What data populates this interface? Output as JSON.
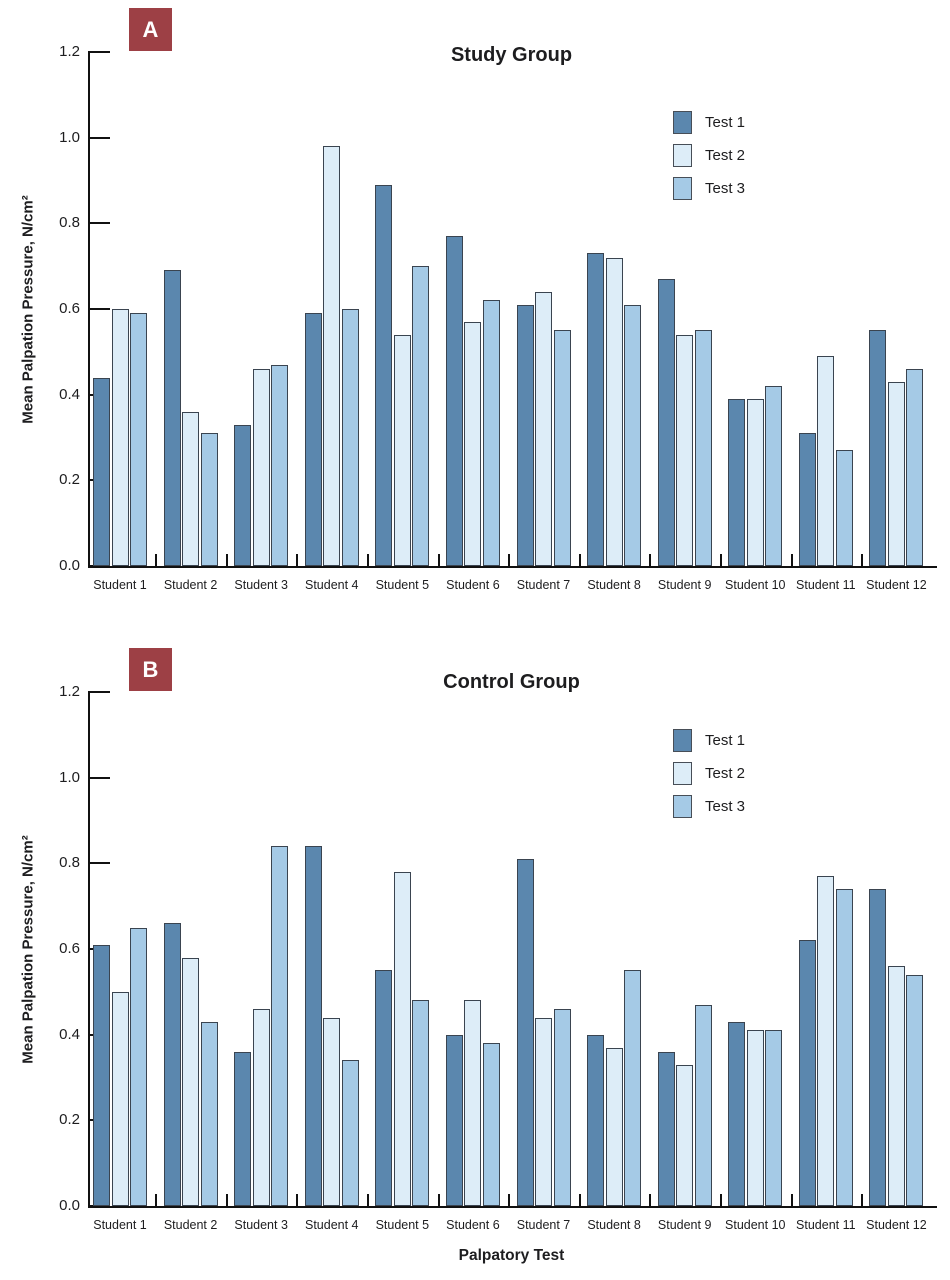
{
  "figure": {
    "panels": [
      {
        "badge": "A"
      },
      {
        "badge": "B"
      }
    ]
  },
  "colors": {
    "badge_bg": "#9d4045",
    "bar_border": "#3a4450",
    "series_colors": [
      "#5b87ae",
      "#ddedf8",
      "#a5cae6"
    ],
    "axis_color": "#111111"
  },
  "chart_data": [
    {
      "type": "bar",
      "panel": "A",
      "title": "Study Group",
      "xlabel": "",
      "ylabel": "Mean Palpation Pressure, N/cm²",
      "ylim": [
        0.0,
        1.2
      ],
      "yticks": [
        0.0,
        0.2,
        0.4,
        0.6,
        0.8,
        1.0,
        1.2
      ],
      "grid": false,
      "legend_position": "upper right",
      "categories": [
        "Student 1",
        "Student 2",
        "Student 3",
        "Student 4",
        "Student 5",
        "Student 6",
        "Student 7",
        "Student 8",
        "Student 9",
        "Student 10",
        "Student 11",
        "Student 12"
      ],
      "series": [
        {
          "name": "Test 1",
          "values": [
            0.44,
            0.69,
            0.33,
            0.59,
            0.89,
            0.77,
            0.61,
            0.73,
            0.67,
            0.39,
            0.31,
            0.55
          ]
        },
        {
          "name": "Test 2",
          "values": [
            0.6,
            0.36,
            0.46,
            0.98,
            0.54,
            0.57,
            0.64,
            0.72,
            0.54,
            0.39,
            0.49,
            0.43
          ]
        },
        {
          "name": "Test 3",
          "values": [
            0.59,
            0.31,
            0.47,
            0.6,
            0.7,
            0.62,
            0.55,
            0.61,
            0.55,
            0.42,
            0.27,
            0.46
          ]
        }
      ]
    },
    {
      "type": "bar",
      "panel": "B",
      "title": "Control Group",
      "xlabel": "Palpatory Test",
      "ylabel": "Mean Palpation Pressure, N/cm²",
      "ylim": [
        0.0,
        1.2
      ],
      "yticks": [
        0.0,
        0.2,
        0.4,
        0.6,
        0.8,
        1.0,
        1.2
      ],
      "grid": false,
      "legend_position": "upper right",
      "categories": [
        "Student 1",
        "Student 2",
        "Student 3",
        "Student 4",
        "Student 5",
        "Student 6",
        "Student 7",
        "Student 8",
        "Student 9",
        "Student 10",
        "Student 11",
        "Student 12"
      ],
      "series": [
        {
          "name": "Test 1",
          "values": [
            0.61,
            0.66,
            0.36,
            0.84,
            0.55,
            0.4,
            0.81,
            0.4,
            0.36,
            0.43,
            0.62,
            0.74
          ]
        },
        {
          "name": "Test 2",
          "values": [
            0.5,
            0.58,
            0.46,
            0.44,
            0.78,
            0.48,
            0.44,
            0.37,
            0.33,
            0.41,
            0.77,
            0.56
          ]
        },
        {
          "name": "Test 3",
          "values": [
            0.65,
            0.43,
            0.84,
            0.34,
            0.48,
            0.38,
            0.46,
            0.55,
            0.47,
            0.41,
            0.74,
            0.54
          ]
        }
      ]
    }
  ]
}
